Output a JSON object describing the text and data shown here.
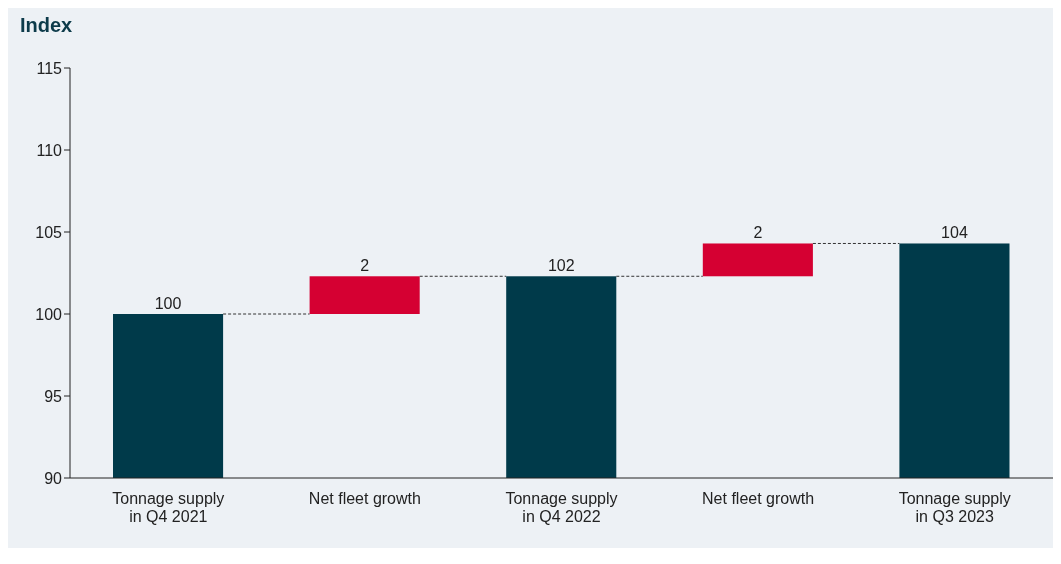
{
  "chart_data": {
    "type": "bar",
    "ylabel": "Index",
    "categories": [
      "Tonnage supply in Q4 2021",
      "Net fleet growth",
      "Tonnage supply in Q4 2022",
      "Net fleet growth",
      "Tonnage supply in Q3 2023"
    ],
    "values": [
      100,
      2.3,
      102.3,
      2,
      104.3
    ],
    "base": [
      null,
      100,
      null,
      102.3,
      null
    ],
    "colors": [
      "#003a4a",
      "#d50032",
      "#003a4a",
      "#d50032",
      "#003a4a"
    ],
    "value_labels": [
      "100",
      "2",
      "102",
      "2",
      "104"
    ],
    "ylim": [
      90,
      115
    ],
    "yticks": [
      90,
      95,
      100,
      105,
      110,
      115
    ],
    "grid": false
  }
}
